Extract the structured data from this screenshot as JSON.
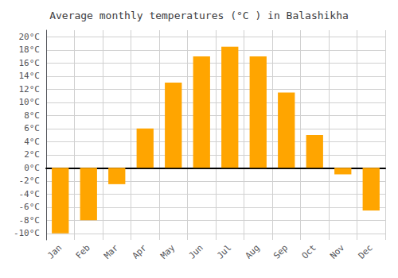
{
  "chart_data": {
    "type": "bar",
    "title": "Average monthly temperatures (°C ) in Balashikha",
    "categories": [
      "Jan",
      "Feb",
      "Mar",
      "Apr",
      "May",
      "Jun",
      "Jul",
      "Aug",
      "Sep",
      "Oct",
      "Nov",
      "Dec"
    ],
    "values": [
      -10,
      -8,
      -2.5,
      6,
      13,
      17,
      18.5,
      17,
      11.5,
      5,
      -1,
      -6.5
    ],
    "color": "#FFA500",
    "ylim": [
      -11,
      21
    ],
    "yticks": [
      {
        "value": -10,
        "label": "-10°C"
      },
      {
        "value": -8,
        "label": "-8°C"
      },
      {
        "value": -6,
        "label": "-6°C"
      },
      {
        "value": -4,
        "label": "-4°C"
      },
      {
        "value": -2,
        "label": "-2°C"
      },
      {
        "value": 0,
        "label": "0°C"
      },
      {
        "value": 2,
        "label": "2°C"
      },
      {
        "value": 4,
        "label": "4°C"
      },
      {
        "value": 6,
        "label": "6°C"
      },
      {
        "value": 8,
        "label": "8°C"
      },
      {
        "value": 10,
        "label": "10°C"
      },
      {
        "value": 12,
        "label": "12°C"
      },
      {
        "value": 14,
        "label": "14°C"
      },
      {
        "value": 16,
        "label": "16°C"
      },
      {
        "value": 18,
        "label": "18°C"
      },
      {
        "value": 20,
        "label": "20°C"
      }
    ],
    "grid": true
  }
}
